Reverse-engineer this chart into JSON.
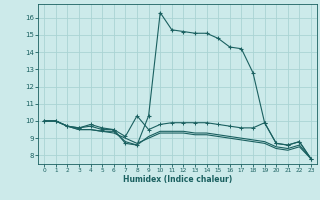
{
  "xlabel": "Humidex (Indice chaleur)",
  "x_ticks": [
    0,
    1,
    2,
    3,
    4,
    5,
    6,
    7,
    8,
    9,
    10,
    11,
    12,
    13,
    14,
    15,
    16,
    17,
    18,
    19,
    20,
    21,
    22,
    23
  ],
  "y_ticks": [
    8,
    9,
    10,
    11,
    12,
    13,
    14,
    15,
    16
  ],
  "ylim": [
    7.5,
    16.8
  ],
  "xlim": [
    -0.5,
    23.5
  ],
  "bg_color": "#cceaea",
  "grid_color": "#aad4d4",
  "line_color": "#1a6060",
  "line1_x": [
    0,
    1,
    2,
    3,
    4,
    5,
    6,
    7,
    8,
    9,
    10,
    11,
    12,
    13,
    14,
    15,
    16,
    17,
    18,
    19,
    20,
    21,
    22,
    23
  ],
  "line1_y": [
    10.0,
    10.0,
    9.7,
    9.6,
    9.7,
    9.5,
    9.5,
    8.7,
    8.6,
    10.3,
    16.3,
    15.3,
    15.2,
    15.1,
    15.1,
    14.8,
    14.3,
    14.2,
    12.8,
    9.9,
    8.7,
    8.6,
    8.8,
    7.8
  ],
  "line2_x": [
    0,
    1,
    2,
    3,
    4,
    5,
    6,
    7,
    8,
    9,
    10,
    11,
    12,
    13,
    14,
    15,
    16,
    17,
    18,
    19,
    20,
    21,
    22,
    23
  ],
  "line2_y": [
    10.0,
    10.0,
    9.7,
    9.6,
    9.8,
    9.6,
    9.5,
    9.1,
    10.3,
    9.5,
    9.8,
    9.9,
    9.9,
    9.9,
    9.9,
    9.8,
    9.7,
    9.6,
    9.6,
    9.9,
    8.7,
    8.6,
    8.8,
    7.8
  ],
  "line3_x": [
    0,
    1,
    2,
    3,
    4,
    5,
    6,
    7,
    8,
    9,
    10,
    11,
    12,
    13,
    14,
    15,
    16,
    17,
    18,
    19,
    20,
    21,
    22,
    23
  ],
  "line3_y": [
    10.0,
    10.0,
    9.7,
    9.5,
    9.5,
    9.4,
    9.4,
    8.8,
    8.6,
    9.1,
    9.4,
    9.4,
    9.4,
    9.3,
    9.3,
    9.2,
    9.1,
    9.0,
    8.9,
    8.8,
    8.5,
    8.4,
    8.6,
    7.8
  ],
  "line4_x": [
    0,
    1,
    2,
    3,
    4,
    5,
    6,
    7,
    8,
    9,
    10,
    11,
    12,
    13,
    14,
    15,
    16,
    17,
    18,
    19,
    20,
    21,
    22,
    23
  ],
  "line4_y": [
    10.0,
    10.0,
    9.7,
    9.5,
    9.5,
    9.4,
    9.3,
    9.0,
    8.7,
    9.0,
    9.3,
    9.3,
    9.3,
    9.2,
    9.2,
    9.1,
    9.0,
    8.9,
    8.8,
    8.7,
    8.4,
    8.3,
    8.5,
    7.8
  ]
}
